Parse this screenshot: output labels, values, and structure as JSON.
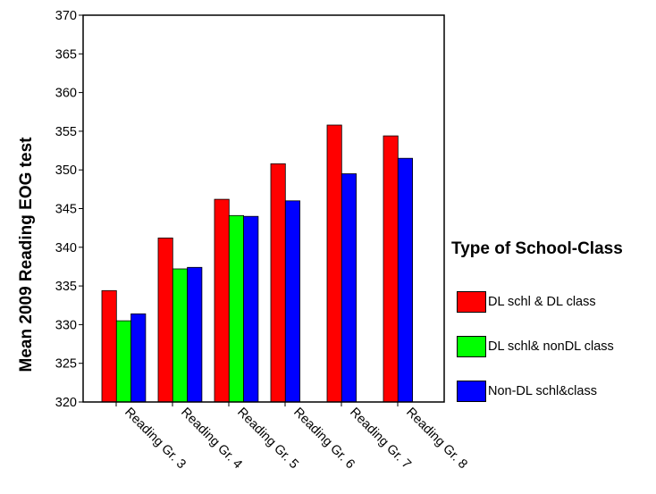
{
  "chart_data": {
    "type": "bar",
    "ylabel": "Mean 2009 Reading EOG test",
    "xlabel": "",
    "categories": [
      "Reading Gr. 3",
      "Reading Gr. 4",
      "Reading Gr. 5",
      "Reading Gr. 6",
      "Reading Gr. 7",
      "Reading Gr. 8"
    ],
    "ylim": [
      320,
      370
    ],
    "yticks": [
      "320",
      "325",
      "330",
      "335",
      "340",
      "345",
      "350",
      "355",
      "360",
      "365",
      "370"
    ],
    "legend_title": "Type of School-Class",
    "legend_position": "right",
    "grid": false,
    "series": [
      {
        "name": "DL schl & DL class",
        "color": "#ff0000",
        "values": [
          334.4,
          341.2,
          346.2,
          350.8,
          355.8,
          354.4
        ]
      },
      {
        "name": "DL schl& nonDL class",
        "color": "#00ff00",
        "values": [
          330.5,
          337.2,
          344.1,
          null,
          null,
          null
        ]
      },
      {
        "name": "Non-DL schl&class",
        "color": "#0000ff",
        "values": [
          331.4,
          337.4,
          344.0,
          346.0,
          349.5,
          351.5
        ]
      }
    ]
  }
}
